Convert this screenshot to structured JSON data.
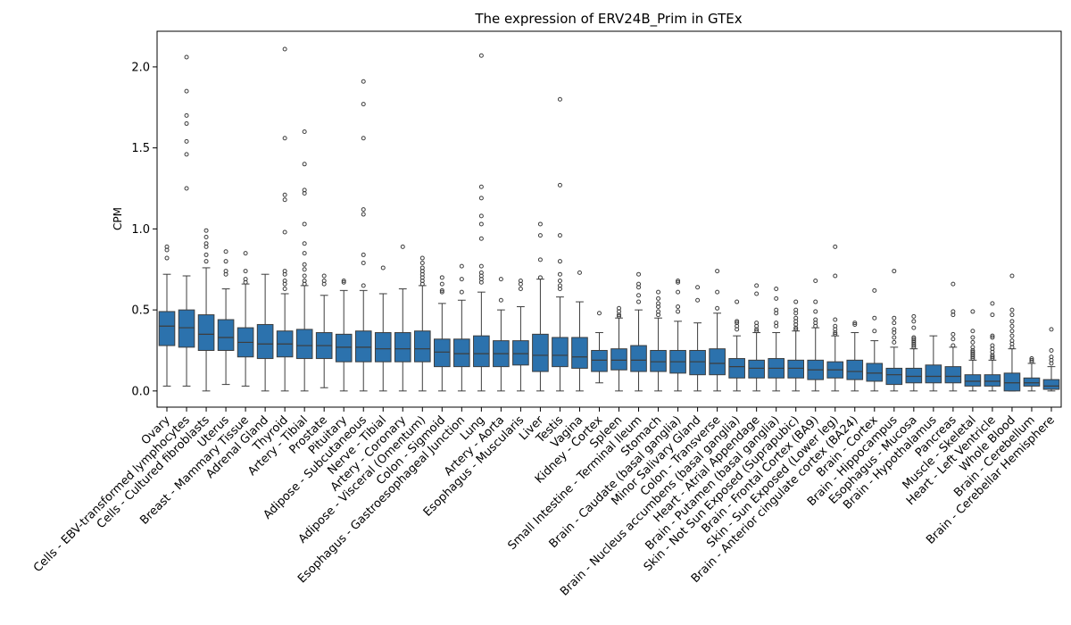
{
  "chart_data": {
    "type": "boxplot",
    "title": "The expression of ERV24B_Prim in GTEx",
    "xlabel": "",
    "ylabel": "CPM",
    "ylim": [
      -0.1,
      2.22
    ],
    "yticks": [
      "0.0",
      "0.5",
      "1.0",
      "1.5",
      "2.0"
    ],
    "grid": false,
    "legend": "none",
    "box_color": "#2c72ad",
    "categories": [
      "Ovary",
      "Cells - EBV-transformed lymphocytes",
      "Cells - Cultured fibroblasts",
      "Uterus",
      "Breast - Mammary Tissue",
      "Adrenal Gland",
      "Thyroid",
      "Artery - Tibial",
      "Prostate",
      "Pituitary",
      "Adipose - Subcutaneous",
      "Nerve - Tibial",
      "Artery - Coronary",
      "Adipose - Visceral (Omentum)",
      "Colon - Sigmoid",
      "Esophagus - Gastroesophageal Junction",
      "Lung",
      "Artery - Aorta",
      "Esophagus - Muscularis",
      "Liver",
      "Testis",
      "Vagina",
      "Kidney - Cortex",
      "Spleen",
      "Small Intestine - Terminal Ileum",
      "Stomach",
      "Brain - Caudate (basal ganglia)",
      "Minor Salivary Gland",
      "Colon - Transverse",
      "Brain - Nucleus accumbens (basal ganglia)",
      "Heart - Atrial Appendage",
      "Brain - Putamen (basal ganglia)",
      "Skin - Not Sun Exposed (Suprapubic)",
      "Brain - Frontal Cortex (BA9)",
      "Skin - Sun Exposed (Lower leg)",
      "Brain - Anterior cingulate cortex (BA24)",
      "Brain - Cortex",
      "Brain - Hippocampus",
      "Esophagus - Mucosa",
      "Brain - Hypothalamus",
      "Pancreas",
      "Muscle - Skeletal",
      "Heart - Left Ventricle",
      "Whole Blood",
      "Brain - Cerebellum",
      "Brain - Cerebellar Hemisphere"
    ],
    "boxes": [
      {
        "min": 0.03,
        "q1": 0.28,
        "median": 0.4,
        "q3": 0.49,
        "max": 0.72,
        "outliers": [
          0.82,
          0.87,
          0.89
        ]
      },
      {
        "min": 0.03,
        "q1": 0.27,
        "median": 0.39,
        "q3": 0.5,
        "max": 0.71,
        "outliers": [
          1.25,
          1.46,
          1.54,
          1.65,
          1.7,
          1.85,
          2.06
        ]
      },
      {
        "min": 0.0,
        "q1": 0.25,
        "median": 0.35,
        "q3": 0.47,
        "max": 0.76,
        "outliers": [
          0.8,
          0.84,
          0.89,
          0.91,
          0.95,
          0.99
        ]
      },
      {
        "min": 0.04,
        "q1": 0.25,
        "median": 0.33,
        "q3": 0.44,
        "max": 0.63,
        "outliers": [
          0.72,
          0.74,
          0.8,
          0.86
        ]
      },
      {
        "min": 0.03,
        "q1": 0.21,
        "median": 0.3,
        "q3": 0.39,
        "max": 0.66,
        "outliers": [
          0.67,
          0.69,
          0.74,
          0.85
        ]
      },
      {
        "min": 0.0,
        "q1": 0.2,
        "median": 0.29,
        "q3": 0.41,
        "max": 0.72,
        "outliers": []
      },
      {
        "min": 0.0,
        "q1": 0.21,
        "median": 0.29,
        "q3": 0.37,
        "max": 0.6,
        "outliers": [
          0.63,
          0.66,
          0.68,
          0.72,
          0.74,
          0.98,
          1.18,
          1.21,
          1.56,
          2.11
        ]
      },
      {
        "min": 0.0,
        "q1": 0.2,
        "median": 0.28,
        "q3": 0.38,
        "max": 0.65,
        "outliers": [
          0.66,
          0.68,
          0.71,
          0.75,
          0.78,
          0.85,
          0.91,
          1.03,
          1.22,
          1.24,
          1.4,
          1.6
        ]
      },
      {
        "min": 0.02,
        "q1": 0.2,
        "median": 0.28,
        "q3": 0.36,
        "max": 0.59,
        "outliers": [
          0.66,
          0.68,
          0.71
        ]
      },
      {
        "min": 0.0,
        "q1": 0.18,
        "median": 0.27,
        "q3": 0.35,
        "max": 0.62,
        "outliers": [
          0.67,
          0.68
        ]
      },
      {
        "min": 0.0,
        "q1": 0.18,
        "median": 0.27,
        "q3": 0.37,
        "max": 0.62,
        "outliers": [
          0.65,
          0.79,
          0.84,
          1.09,
          1.12,
          1.56,
          1.77,
          1.91
        ]
      },
      {
        "min": 0.0,
        "q1": 0.18,
        "median": 0.26,
        "q3": 0.36,
        "max": 0.6,
        "outliers": [
          0.76
        ]
      },
      {
        "min": 0.0,
        "q1": 0.18,
        "median": 0.26,
        "q3": 0.36,
        "max": 0.63,
        "outliers": [
          0.89
        ]
      },
      {
        "min": 0.0,
        "q1": 0.18,
        "median": 0.26,
        "q3": 0.37,
        "max": 0.65,
        "outliers": [
          0.66,
          0.68,
          0.7,
          0.72,
          0.74,
          0.76,
          0.79,
          0.82
        ]
      },
      {
        "min": 0.0,
        "q1": 0.15,
        "median": 0.24,
        "q3": 0.32,
        "max": 0.54,
        "outliers": [
          0.61,
          0.62,
          0.66,
          0.7
        ]
      },
      {
        "min": 0.0,
        "q1": 0.15,
        "median": 0.23,
        "q3": 0.32,
        "max": 0.56,
        "outliers": [
          0.61,
          0.69,
          0.77
        ]
      },
      {
        "min": 0.0,
        "q1": 0.15,
        "median": 0.23,
        "q3": 0.34,
        "max": 0.61,
        "outliers": [
          0.67,
          0.69,
          0.71,
          0.73,
          0.77,
          0.94,
          1.03,
          1.08,
          1.19,
          1.26,
          2.07
        ]
      },
      {
        "min": 0.0,
        "q1": 0.15,
        "median": 0.23,
        "q3": 0.31,
        "max": 0.5,
        "outliers": [
          0.56,
          0.69
        ]
      },
      {
        "min": 0.0,
        "q1": 0.16,
        "median": 0.23,
        "q3": 0.31,
        "max": 0.52,
        "outliers": [
          0.63,
          0.66,
          0.68
        ]
      },
      {
        "min": 0.0,
        "q1": 0.12,
        "median": 0.22,
        "q3": 0.35,
        "max": 0.69,
        "outliers": [
          0.7,
          0.81,
          0.96,
          1.03
        ]
      },
      {
        "min": 0.0,
        "q1": 0.15,
        "median": 0.22,
        "q3": 0.33,
        "max": 0.58,
        "outliers": [
          0.63,
          0.65,
          0.68,
          0.72,
          0.8,
          0.96,
          1.27,
          1.8
        ]
      },
      {
        "min": 0.0,
        "q1": 0.14,
        "median": 0.21,
        "q3": 0.33,
        "max": 0.55,
        "outliers": [
          0.73
        ]
      },
      {
        "min": 0.05,
        "q1": 0.12,
        "median": 0.19,
        "q3": 0.25,
        "max": 0.36,
        "outliers": [
          0.48
        ]
      },
      {
        "min": 0.0,
        "q1": 0.13,
        "median": 0.19,
        "q3": 0.26,
        "max": 0.45,
        "outliers": [
          0.46,
          0.47,
          0.49,
          0.51
        ]
      },
      {
        "min": 0.0,
        "q1": 0.12,
        "median": 0.19,
        "q3": 0.28,
        "max": 0.5,
        "outliers": [
          0.55,
          0.59,
          0.64,
          0.66,
          0.72
        ]
      },
      {
        "min": 0.0,
        "q1": 0.12,
        "median": 0.18,
        "q3": 0.25,
        "max": 0.45,
        "outliers": [
          0.47,
          0.49,
          0.52,
          0.54,
          0.57,
          0.61
        ]
      },
      {
        "min": 0.0,
        "q1": 0.11,
        "median": 0.18,
        "q3": 0.25,
        "max": 0.43,
        "outliers": [
          0.49,
          0.52,
          0.61,
          0.67,
          0.68
        ]
      },
      {
        "min": 0.0,
        "q1": 0.1,
        "median": 0.18,
        "q3": 0.25,
        "max": 0.42,
        "outliers": [
          0.56,
          0.64
        ]
      },
      {
        "min": 0.0,
        "q1": 0.1,
        "median": 0.17,
        "q3": 0.26,
        "max": 0.48,
        "outliers": [
          0.51,
          0.61,
          0.74
        ]
      },
      {
        "min": 0.0,
        "q1": 0.08,
        "median": 0.15,
        "q3": 0.2,
        "max": 0.34,
        "outliers": [
          0.38,
          0.4,
          0.42,
          0.43,
          0.55
        ]
      },
      {
        "min": 0.0,
        "q1": 0.08,
        "median": 0.14,
        "q3": 0.19,
        "max": 0.36,
        "outliers": [
          0.37,
          0.38,
          0.4,
          0.42,
          0.6,
          0.65
        ]
      },
      {
        "min": 0.0,
        "q1": 0.08,
        "median": 0.14,
        "q3": 0.2,
        "max": 0.36,
        "outliers": [
          0.4,
          0.42,
          0.48,
          0.5,
          0.57,
          0.63
        ]
      },
      {
        "min": 0.0,
        "q1": 0.08,
        "median": 0.14,
        "q3": 0.19,
        "max": 0.37,
        "outliers": [
          0.38,
          0.39,
          0.41,
          0.43,
          0.45,
          0.48,
          0.5,
          0.55
        ]
      },
      {
        "min": 0.0,
        "q1": 0.07,
        "median": 0.13,
        "q3": 0.19,
        "max": 0.39,
        "outliers": [
          0.4,
          0.42,
          0.44,
          0.49,
          0.55,
          0.68
        ]
      },
      {
        "min": 0.0,
        "q1": 0.08,
        "median": 0.13,
        "q3": 0.18,
        "max": 0.34,
        "outliers": [
          0.35,
          0.36,
          0.38,
          0.4,
          0.44,
          0.71,
          0.89
        ]
      },
      {
        "min": 0.0,
        "q1": 0.07,
        "median": 0.12,
        "q3": 0.19,
        "max": 0.36,
        "outliers": [
          0.41,
          0.42
        ]
      },
      {
        "min": 0.0,
        "q1": 0.06,
        "median": 0.11,
        "q3": 0.17,
        "max": 0.31,
        "outliers": [
          0.37,
          0.45,
          0.62
        ]
      },
      {
        "min": 0.0,
        "q1": 0.04,
        "median": 0.1,
        "q3": 0.14,
        "max": 0.27,
        "outliers": [
          0.3,
          0.33,
          0.36,
          0.38,
          0.42,
          0.45,
          0.74
        ]
      },
      {
        "min": 0.0,
        "q1": 0.05,
        "median": 0.09,
        "q3": 0.14,
        "max": 0.26,
        "outliers": [
          0.27,
          0.28,
          0.29,
          0.3,
          0.31,
          0.32,
          0.33,
          0.39,
          0.43,
          0.46
        ]
      },
      {
        "min": 0.0,
        "q1": 0.05,
        "median": 0.09,
        "q3": 0.16,
        "max": 0.34,
        "outliers": []
      },
      {
        "min": 0.0,
        "q1": 0.05,
        "median": 0.09,
        "q3": 0.15,
        "max": 0.27,
        "outliers": [
          0.28,
          0.32,
          0.35,
          0.47,
          0.49,
          0.66
        ]
      },
      {
        "min": 0.0,
        "q1": 0.03,
        "median": 0.06,
        "q3": 0.1,
        "max": 0.19,
        "outliers": [
          0.2,
          0.21,
          0.22,
          0.23,
          0.24,
          0.25,
          0.27,
          0.3,
          0.33,
          0.37,
          0.49
        ]
      },
      {
        "min": 0.0,
        "q1": 0.03,
        "median": 0.06,
        "q3": 0.1,
        "max": 0.19,
        "outliers": [
          0.2,
          0.21,
          0.22,
          0.24,
          0.26,
          0.28,
          0.33,
          0.34,
          0.47,
          0.54
        ]
      },
      {
        "min": 0.0,
        "q1": 0.0,
        "median": 0.05,
        "q3": 0.11,
        "max": 0.26,
        "outliers": [
          0.27,
          0.29,
          0.31,
          0.34,
          0.37,
          0.4,
          0.43,
          0.47,
          0.5,
          0.71
        ]
      },
      {
        "min": 0.0,
        "q1": 0.03,
        "median": 0.05,
        "q3": 0.08,
        "max": 0.17,
        "outliers": [
          0.18,
          0.19,
          0.2
        ]
      },
      {
        "min": 0.0,
        "q1": 0.01,
        "median": 0.03,
        "q3": 0.07,
        "max": 0.15,
        "outliers": [
          0.17,
          0.19,
          0.21,
          0.25,
          0.38
        ]
      }
    ]
  }
}
